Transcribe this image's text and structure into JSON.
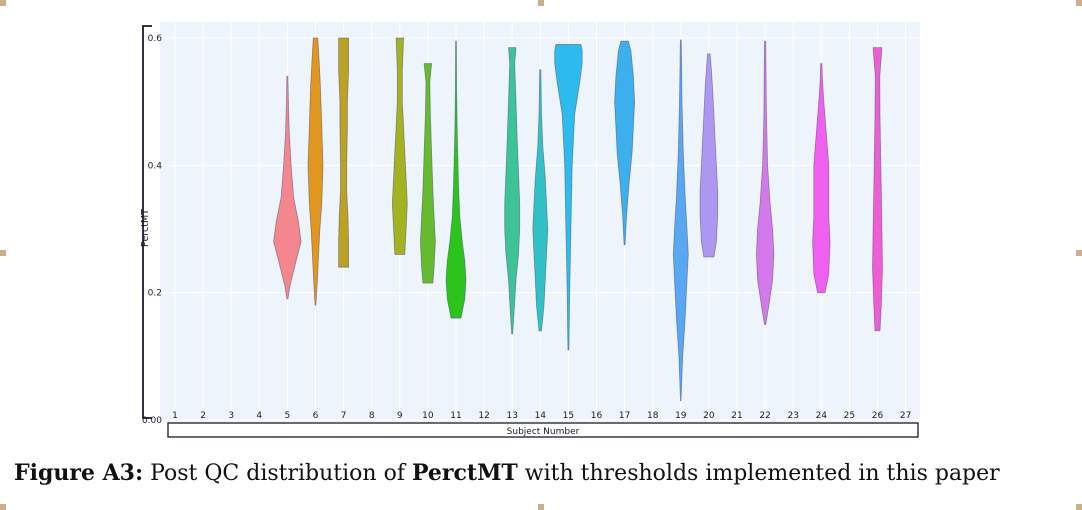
{
  "chart_data": {
    "type": "violin",
    "ylabel": "PerctMT",
    "xlabel": "Subject Number",
    "ylim": [
      0.0,
      0.6
    ],
    "y_ticks": [
      "0.00",
      "0.2",
      "0.4",
      "0.6"
    ],
    "x_ticks": [
      "1",
      "2",
      "3",
      "4",
      "5",
      "6",
      "7",
      "8",
      "9",
      "10",
      "11",
      "12",
      "13",
      "14",
      "15",
      "16",
      "17",
      "18",
      "19",
      "20",
      "21",
      "22",
      "23",
      "24",
      "25",
      "26",
      "27"
    ],
    "background": "#eef4fb",
    "grid": true,
    "violins": [
      {
        "subject": "5",
        "color": "#f47c86",
        "profile": [
          [
            0.19,
            0.4
          ],
          [
            0.21,
            2
          ],
          [
            0.25,
            7
          ],
          [
            0.28,
            11
          ],
          [
            0.31,
            9
          ],
          [
            0.35,
            5
          ],
          [
            0.4,
            3
          ],
          [
            0.45,
            1.5
          ],
          [
            0.5,
            0.8
          ],
          [
            0.54,
            0.4
          ]
        ]
      },
      {
        "subject": "6",
        "color": "#e08e0b",
        "profile": [
          [
            0.18,
            0.3
          ],
          [
            0.22,
            1.5
          ],
          [
            0.26,
            2.5
          ],
          [
            0.3,
            3.5
          ],
          [
            0.34,
            5
          ],
          [
            0.4,
            6
          ],
          [
            0.46,
            5
          ],
          [
            0.52,
            4
          ],
          [
            0.56,
            3
          ],
          [
            0.6,
            1.8
          ]
        ]
      },
      {
        "subject": "7",
        "color": "#b79a10",
        "profile": [
          [
            0.24,
            4
          ],
          [
            0.28,
            4
          ],
          [
            0.32,
            3.5
          ],
          [
            0.36,
            2.5
          ],
          [
            0.4,
            2.5
          ],
          [
            0.46,
            3
          ],
          [
            0.5,
            3
          ],
          [
            0.55,
            4
          ],
          [
            0.6,
            4
          ]
        ]
      },
      {
        "subject": "9",
        "color": "#9aac0e",
        "profile": [
          [
            0.26,
            4
          ],
          [
            0.3,
            5
          ],
          [
            0.34,
            6
          ],
          [
            0.38,
            5
          ],
          [
            0.42,
            4
          ],
          [
            0.46,
            3
          ],
          [
            0.5,
            2
          ],
          [
            0.55,
            2
          ],
          [
            0.6,
            3
          ]
        ]
      },
      {
        "subject": "10",
        "color": "#5ab41c",
        "profile": [
          [
            0.215,
            4
          ],
          [
            0.24,
            5
          ],
          [
            0.28,
            6
          ],
          [
            0.32,
            5
          ],
          [
            0.36,
            4
          ],
          [
            0.42,
            3
          ],
          [
            0.48,
            2
          ],
          [
            0.53,
            1.5
          ],
          [
            0.56,
            3
          ]
        ]
      },
      {
        "subject": "11",
        "color": "#1bbf08",
        "profile": [
          [
            0.16,
            4
          ],
          [
            0.19,
            7
          ],
          [
            0.22,
            8
          ],
          [
            0.25,
            7
          ],
          [
            0.28,
            5
          ],
          [
            0.32,
            3
          ],
          [
            0.37,
            2
          ],
          [
            0.45,
            1
          ],
          [
            0.52,
            0.5
          ],
          [
            0.595,
            0.3
          ]
        ]
      },
      {
        "subject": "13",
        "color": "#2dbf8f",
        "profile": [
          [
            0.135,
            0.4
          ],
          [
            0.17,
            1.5
          ],
          [
            0.22,
            3
          ],
          [
            0.26,
            5
          ],
          [
            0.3,
            6
          ],
          [
            0.34,
            6
          ],
          [
            0.39,
            5
          ],
          [
            0.44,
            4
          ],
          [
            0.5,
            3
          ],
          [
            0.56,
            2
          ],
          [
            0.585,
            3
          ]
        ]
      },
      {
        "subject": "14",
        "color": "#21bcc0",
        "profile": [
          [
            0.14,
            1
          ],
          [
            0.18,
            3
          ],
          [
            0.22,
            4
          ],
          [
            0.26,
            5
          ],
          [
            0.3,
            6
          ],
          [
            0.34,
            5
          ],
          [
            0.38,
            4
          ],
          [
            0.43,
            2
          ],
          [
            0.48,
            1
          ],
          [
            0.55,
            0.5
          ]
        ]
      },
      {
        "subject": "15",
        "color": "#1cb5ec",
        "profile": [
          [
            0.11,
            0.4
          ],
          [
            0.2,
            1
          ],
          [
            0.3,
            2
          ],
          [
            0.4,
            3
          ],
          [
            0.48,
            5
          ],
          [
            0.53,
            9
          ],
          [
            0.56,
            11
          ],
          [
            0.58,
            11
          ],
          [
            0.59,
            10
          ]
        ]
      },
      {
        "subject": "17",
        "color": "#2ea8ec",
        "profile": [
          [
            0.275,
            0.4
          ],
          [
            0.32,
            1.5
          ],
          [
            0.37,
            3.5
          ],
          [
            0.42,
            6
          ],
          [
            0.46,
            7
          ],
          [
            0.5,
            8
          ],
          [
            0.54,
            7
          ],
          [
            0.58,
            5
          ],
          [
            0.595,
            3
          ]
        ]
      },
      {
        "subject": "19",
        "color": "#4d9ff0",
        "profile": [
          [
            0.03,
            0.2
          ],
          [
            0.1,
            1.5
          ],
          [
            0.16,
            3.5
          ],
          [
            0.22,
            5
          ],
          [
            0.26,
            6
          ],
          [
            0.3,
            5
          ],
          [
            0.35,
            3.5
          ],
          [
            0.42,
            2
          ],
          [
            0.5,
            1
          ],
          [
            0.58,
            0.5
          ],
          [
            0.597,
            0.3
          ]
        ]
      },
      {
        "subject": "20",
        "color": "#a78ff0",
        "profile": [
          [
            0.256,
            4
          ],
          [
            0.28,
            6
          ],
          [
            0.32,
            7
          ],
          [
            0.36,
            7
          ],
          [
            0.4,
            6
          ],
          [
            0.44,
            5
          ],
          [
            0.48,
            4
          ],
          [
            0.52,
            3
          ],
          [
            0.55,
            2
          ],
          [
            0.575,
            1
          ]
        ]
      },
      {
        "subject": "22",
        "color": "#d16ee8",
        "profile": [
          [
            0.15,
            0.5
          ],
          [
            0.18,
            3
          ],
          [
            0.22,
            6
          ],
          [
            0.26,
            7
          ],
          [
            0.3,
            6
          ],
          [
            0.34,
            4
          ],
          [
            0.4,
            2
          ],
          [
            0.48,
            1
          ],
          [
            0.55,
            0.7
          ],
          [
            0.595,
            0.5
          ]
        ]
      },
      {
        "subject": "24",
        "color": "#ef52ef",
        "profile": [
          [
            0.2,
            3
          ],
          [
            0.23,
            6
          ],
          [
            0.28,
            7
          ],
          [
            0.32,
            6
          ],
          [
            0.36,
            6
          ],
          [
            0.4,
            6
          ],
          [
            0.45,
            4
          ],
          [
            0.5,
            2
          ],
          [
            0.53,
            1
          ],
          [
            0.56,
            0.5
          ]
        ]
      },
      {
        "subject": "26",
        "color": "#ef4fd2",
        "profile": [
          [
            0.14,
            2
          ],
          [
            0.18,
            3
          ],
          [
            0.24,
            4
          ],
          [
            0.3,
            3.5
          ],
          [
            0.36,
            3
          ],
          [
            0.42,
            2.5
          ],
          [
            0.48,
            2
          ],
          [
            0.54,
            1.8
          ],
          [
            0.585,
            3.5
          ]
        ]
      }
    ]
  },
  "caption": {
    "label": "Figure A3:",
    "text_before": " Post QC distribution of ",
    "highlight": "PerctMT",
    "text_after": " with thresholds implemented in this paper"
  }
}
